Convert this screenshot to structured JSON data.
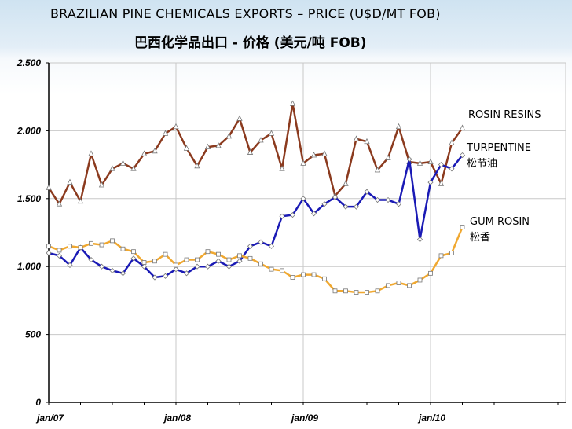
{
  "title": "BRAZILIAN PINE CHEMICALS EXPORTS – PRICE (U$D/MT FOB)",
  "subtitle": "巴西化学品出口 - 价格 (美元/吨 FOB)",
  "chart_data": {
    "type": "line",
    "title": "BRAZILIAN PINE CHEMICALS EXPORTS – PRICE (U$D/MT FOB)",
    "subtitle": "巴西化学品出口 - 价格 (美元/吨 FOB)",
    "ylim": [
      0,
      2500
    ],
    "yticks": [
      {
        "value": 0,
        "label": "0"
      },
      {
        "value": 500,
        "label": "500"
      },
      {
        "value": 1000,
        "label": "1.000"
      },
      {
        "value": 1500,
        "label": "1.500"
      },
      {
        "value": 2000,
        "label": "2.000"
      },
      {
        "value": 2500,
        "label": "2.500"
      }
    ],
    "xlim": [
      0,
      48
    ],
    "xticks": [
      {
        "index": 0,
        "label": "jan/07"
      },
      {
        "index": 12,
        "label": "jan/08"
      },
      {
        "index": 24,
        "label": "jan/09"
      },
      {
        "index": 36,
        "label": "jan/10"
      }
    ],
    "grid": true,
    "series": [
      {
        "name": "ROSIN RESINS",
        "color": "#8b3a1e",
        "marker": "triangle",
        "label_lines": [
          "ROSIN RESINS"
        ],
        "values": [
          1580,
          1460,
          1620,
          1480,
          1830,
          1600,
          1720,
          1760,
          1720,
          1830,
          1850,
          1980,
          2030,
          1870,
          1740,
          1880,
          1890,
          1960,
          2090,
          1840,
          1930,
          1980,
          1720,
          2200,
          1760,
          1820,
          1830,
          1520,
          1610,
          1940,
          1920,
          1710,
          1800,
          2030,
          1770,
          1760,
          1770,
          1610,
          1910,
          2020
        ]
      },
      {
        "name": "TURPENTINE",
        "color": "#1a1ab5",
        "marker": "diamond",
        "label_lines": [
          "TURPENTINE",
          "松节油"
        ],
        "values": [
          1100,
          1080,
          1010,
          1140,
          1050,
          1000,
          970,
          950,
          1060,
          1000,
          920,
          930,
          980,
          950,
          1000,
          1000,
          1040,
          1000,
          1040,
          1150,
          1180,
          1150,
          1370,
          1380,
          1500,
          1390,
          1460,
          1510,
          1440,
          1440,
          1550,
          1490,
          1490,
          1460,
          1790,
          1200,
          1620,
          1750,
          1720,
          1820
        ]
      },
      {
        "name": "GUM ROSIN",
        "color": "#f0a830",
        "marker": "square",
        "label_lines": [
          "GUM ROSIN",
          "松香"
        ],
        "values": [
          1150,
          1120,
          1150,
          1140,
          1170,
          1160,
          1190,
          1130,
          1110,
          1030,
          1040,
          1090,
          1010,
          1050,
          1050,
          1110,
          1090,
          1050,
          1080,
          1060,
          1020,
          980,
          970,
          920,
          940,
          940,
          910,
          820,
          820,
          810,
          810,
          820,
          860,
          880,
          860,
          900,
          950,
          1080,
          1100,
          1290
        ]
      }
    ]
  }
}
